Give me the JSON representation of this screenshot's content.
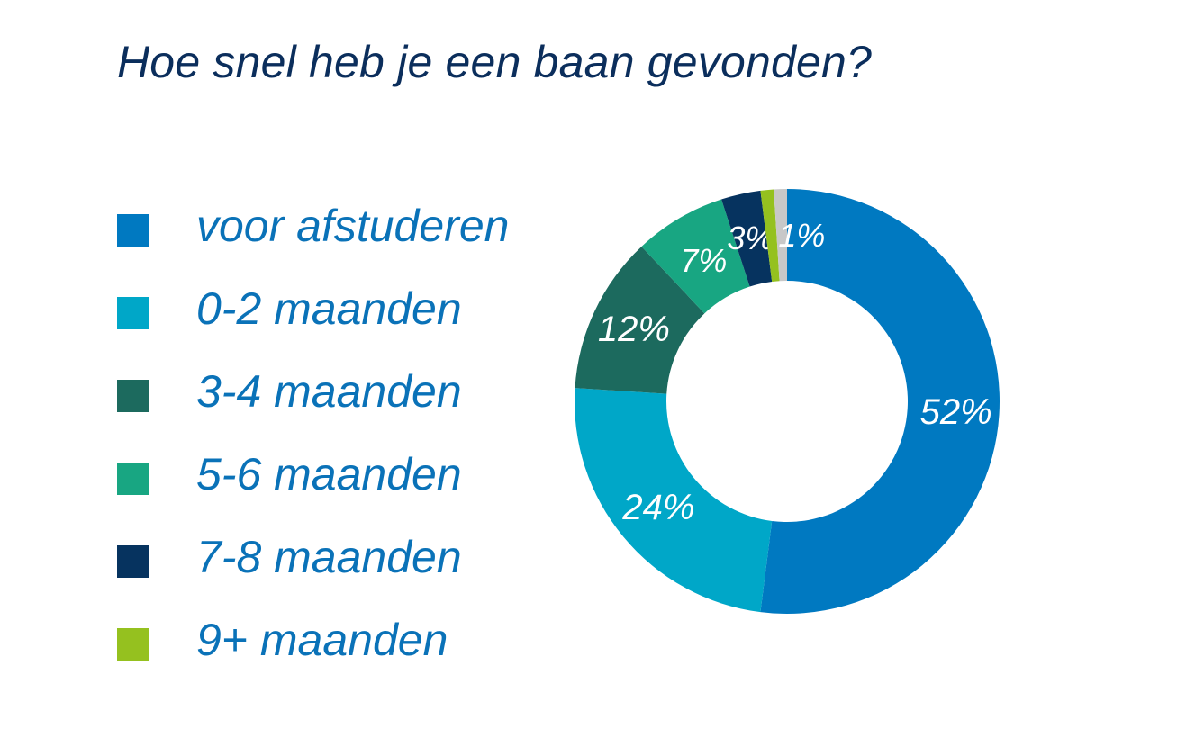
{
  "chart_data": {
    "type": "pie",
    "title": "Hoe snel heb je een baan gevonden?",
    "categories": [
      "voor afstuderen",
      "0-2 maanden",
      "3-4 maanden",
      "5-6 maanden",
      "7-8 maanden",
      "9+ maanden",
      ""
    ],
    "values": [
      52,
      24,
      12,
      7,
      3,
      1,
      1
    ],
    "labels": [
      "52%",
      "24%",
      "12%",
      "7%",
      "3%",
      "",
      "1%"
    ],
    "colors": [
      "#0079c1",
      "#00a7c8",
      "#1c6a5e",
      "#18a682",
      "#06335f",
      "#95c11f",
      "#c8c8c8"
    ],
    "legend_position": "left",
    "donut": true
  }
}
